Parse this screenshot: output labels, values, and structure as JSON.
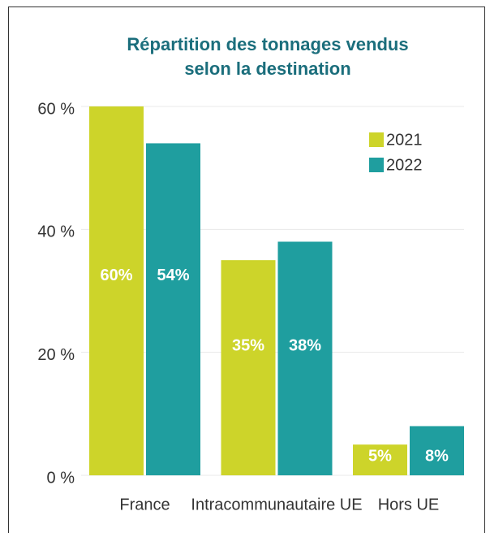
{
  "chart_data": {
    "type": "bar",
    "title": [
      "Répartition des tonnages vendus",
      "selon la destination"
    ],
    "categories": [
      "France",
      "Intracommunautaire UE",
      "Hors UE"
    ],
    "series": [
      {
        "name": "2021",
        "color": "#cdd42a",
        "values": [
          60,
          35,
          5
        ],
        "value_labels": [
          "60%",
          "35%",
          "5%"
        ]
      },
      {
        "name": "2022",
        "color": "#1f9e9f",
        "values": [
          54,
          38,
          8
        ],
        "value_labels": [
          "54%",
          "38%",
          "8%"
        ]
      }
    ],
    "ylim": [
      0,
      60
    ],
    "yticks": [
      {
        "value": 0,
        "label": "0 %"
      },
      {
        "value": 20,
        "label": "20 %"
      },
      {
        "value": 40,
        "label": "40 %"
      },
      {
        "value": 60,
        "label": "60 %"
      }
    ],
    "grid": true,
    "legend": "upper right"
  }
}
